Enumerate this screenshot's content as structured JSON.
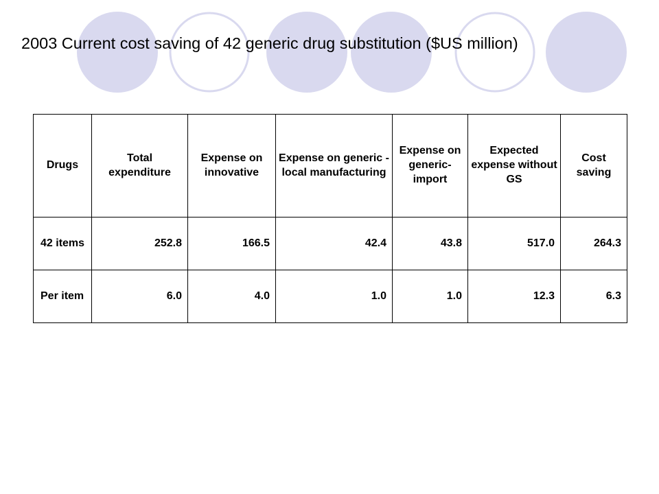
{
  "slide": {
    "title": "2003 Current cost saving of 42 generic drug substitution ($US million)"
  },
  "table": {
    "headers": [
      "Drugs",
      "Total expenditure",
      "Expense on innovative",
      "Expense on generic - local manufacturing",
      "Expense on generic- import",
      "Expected expense without GS",
      "Cost saving"
    ],
    "rows": [
      [
        "42 items",
        "252.8",
        "166.5",
        "42.4",
        "43.8",
        "517.0",
        "264.3"
      ],
      [
        "Per item",
        "6.0",
        "4.0",
        "1.0",
        "1.0",
        "12.3",
        "6.3"
      ]
    ]
  },
  "chart_data": {
    "type": "table",
    "title": "2003 Current cost saving of 42 generic drug substitution ($US million)",
    "columns": [
      "Drugs",
      "Total expenditure",
      "Expense on innovative",
      "Expense on generic - local manufacturing",
      "Expense on generic- import",
      "Expected expense without GS",
      "Cost saving"
    ],
    "rows": [
      [
        "42 items",
        252.8,
        166.5,
        42.4,
        43.8,
        517.0,
        264.3
      ],
      [
        "Per item",
        6.0,
        4.0,
        1.0,
        1.0,
        12.3,
        6.3
      ]
    ]
  },
  "theme": {
    "circle_fill": "#d9d9ef",
    "circle_outline": "#d9d9ef",
    "background": "#ffffff",
    "text": "#000000"
  }
}
